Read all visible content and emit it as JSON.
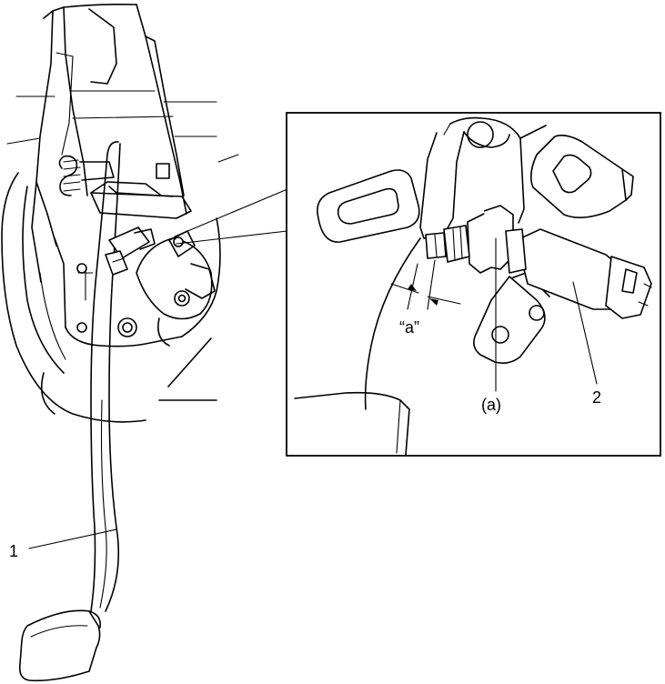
{
  "labels": {
    "pedal": "1",
    "switch": "2",
    "part_a": "(a)",
    "gap": "“a”"
  }
}
